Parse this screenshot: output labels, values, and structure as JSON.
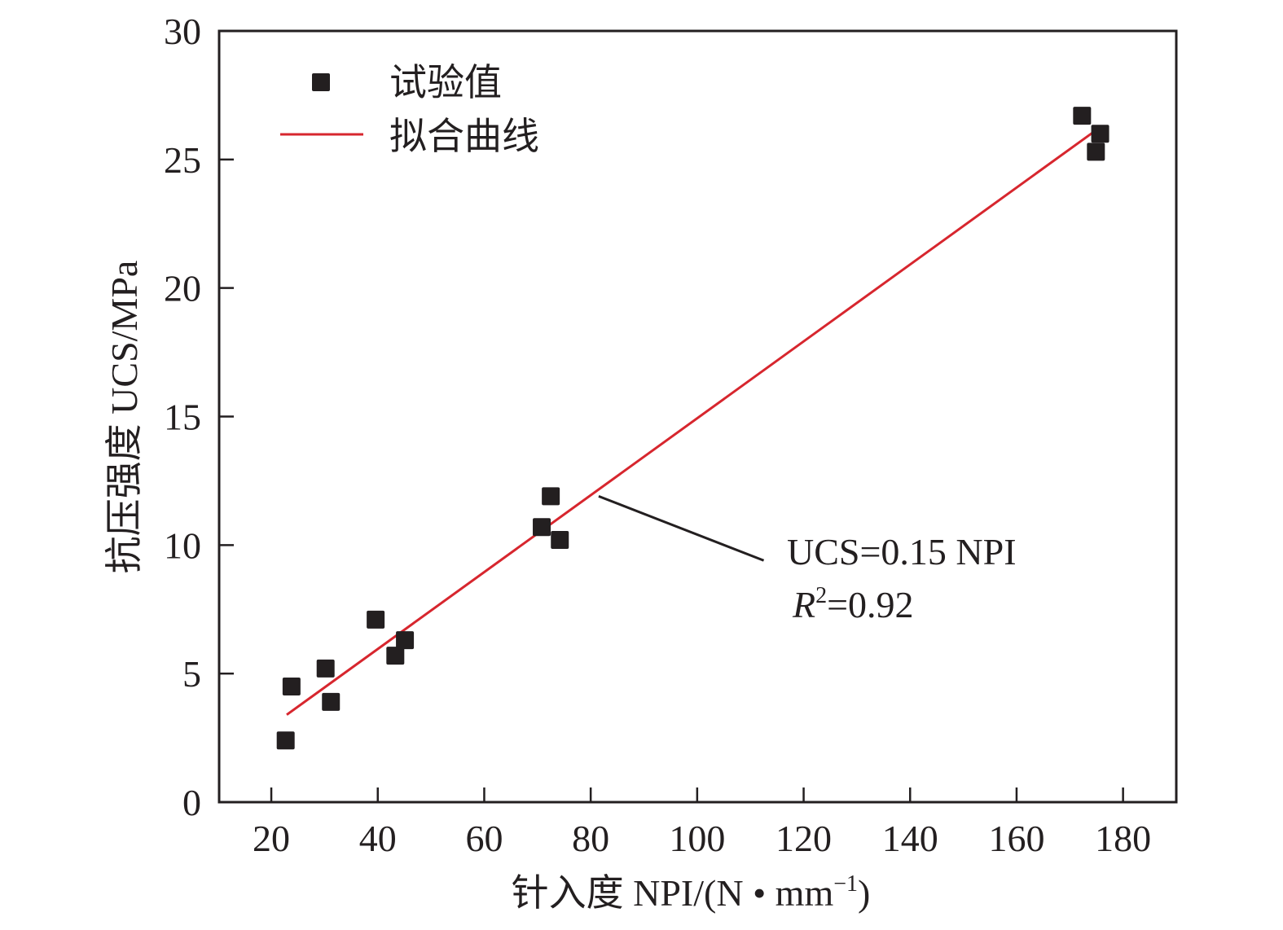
{
  "chart_data": {
    "type": "scatter",
    "title": "",
    "xlabel": "针入度 NPI/(N • mm⁻¹)",
    "ylabel": "抗压强度 UCS/MPa",
    "xlim": [
      10.2,
      190
    ],
    "ylim": [
      0,
      30
    ],
    "x_ticks": [
      20,
      40,
      60,
      80,
      100,
      120,
      140,
      160,
      180
    ],
    "y_ticks": [
      0,
      5,
      10,
      15,
      20,
      25,
      30
    ],
    "grid": false,
    "legend": {
      "placement": "top-left",
      "entries": [
        {
          "label": "试验值",
          "marker": "square",
          "color": "#231f20"
        },
        {
          "label": "拟合曲线",
          "marker": "line",
          "color": "#d7262e"
        }
      ]
    },
    "series": [
      {
        "name": "试验值",
        "kind": "scatter",
        "color": "#231f20",
        "points": [
          {
            "x": 22.7,
            "y": 2.4
          },
          {
            "x": 23.8,
            "y": 4.5
          },
          {
            "x": 30.2,
            "y": 5.2
          },
          {
            "x": 31.2,
            "y": 3.9
          },
          {
            "x": 39.6,
            "y": 7.1
          },
          {
            "x": 43.3,
            "y": 5.7
          },
          {
            "x": 45.1,
            "y": 6.3
          },
          {
            "x": 70.8,
            "y": 10.7
          },
          {
            "x": 72.5,
            "y": 11.9
          },
          {
            "x": 74.2,
            "y": 10.2
          },
          {
            "x": 172.3,
            "y": 26.7
          },
          {
            "x": 175.7,
            "y": 26.0
          },
          {
            "x": 174.9,
            "y": 25.3
          }
        ]
      },
      {
        "name": "拟合曲线",
        "kind": "line",
        "color": "#d7262e",
        "points": [
          {
            "x": 22.9,
            "y": 3.4
          },
          {
            "x": 176.0,
            "y": 26.3
          }
        ]
      }
    ],
    "annotations": {
      "equation": "UCS=0.15 NPI",
      "r2_symbol": "R",
      "r2_sup": "2",
      "r2_value": "=0.92",
      "leader_from": {
        "x": 81.5,
        "y": 11.9
      },
      "leader_to": {
        "x": 112.5,
        "y": 9.4
      }
    }
  }
}
